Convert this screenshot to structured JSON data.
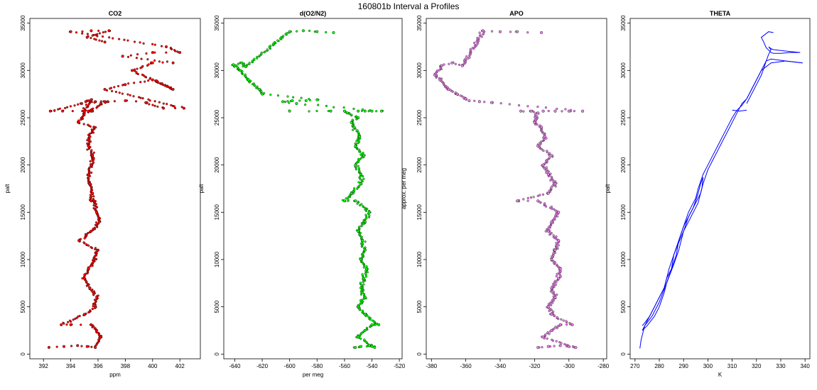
{
  "figure": {
    "title": "160801b   Interval a Profiles"
  },
  "colors": {
    "co2": "#ff0000",
    "o2n2": "#00ff00",
    "apo": "#ee82ee",
    "theta": "#0000ff",
    "point_outline": "#000000"
  },
  "chart_data": [
    {
      "type": "scatter",
      "title": "CO2",
      "xlabel": "ppm",
      "ylabel": "palt",
      "xlim": [
        391,
        403.5
      ],
      "ylim": [
        -500,
        35500
      ],
      "xticks": [
        392,
        394,
        396,
        398,
        400,
        402
      ],
      "yticks": [
        0,
        5000,
        10000,
        15000,
        20000,
        25000,
        30000,
        35000
      ],
      "color_key": "co2",
      "series": [
        {
          "style": "points",
          "x": [
            392.4,
            393.5,
            394.5,
            395.2,
            395.8,
            396.2,
            395.9,
            395.5,
            394.0,
            393.3,
            395.0,
            395.8,
            395.9,
            395.4,
            395.0,
            395.3,
            395.7,
            396.0,
            394.6,
            395.5,
            396.1,
            395.9,
            395.7,
            395.5,
            395.6,
            395.4,
            395.3,
            395.5,
            395.6,
            395.3,
            395.4,
            395.7,
            394.6,
            395.0,
            395.6,
            395.3,
            395.5,
            396.2,
            396.7,
            395.8,
            395.1,
            395.5,
            395.0,
            393.4,
            392.5,
            394.8,
            396.5,
            398.0,
            399.5,
            400.8,
            402.3,
            396.5,
            398.0,
            400.0,
            401.5,
            398.5,
            400.0,
            401.5,
            397.8,
            400.0,
            402.0,
            401.0,
            394.0,
            395.5,
            396.8,
            395.2,
            396.5
          ],
          "y": [
            700,
            800,
            900,
            800,
            700,
            1800,
            2500,
            3100,
            3100,
            3100,
            4200,
            5000,
            6000,
            7000,
            8000,
            9000,
            10000,
            11000,
            12000,
            13000,
            14000,
            15000,
            16200,
            16200,
            17000,
            18000,
            19000,
            20000,
            21000,
            22000,
            23000,
            24000,
            24500,
            25500,
            25700,
            25700,
            25700,
            26500,
            26700,
            26700,
            26700,
            26900,
            25700,
            25700,
            25700,
            26500,
            26700,
            26800,
            26600,
            26000,
            26000,
            28000,
            28500,
            29000,
            28000,
            30000,
            30800,
            30800,
            31500,
            31900,
            31900,
            32500,
            34100,
            34200,
            34200,
            33500,
            33000
          ]
        }
      ]
    },
    {
      "type": "scatter",
      "title": "d(O2/N2)",
      "xlabel": "per meg",
      "ylabel": "palt",
      "xlim": [
        -648,
        -518
      ],
      "ylim": [
        -500,
        35500
      ],
      "xticks": [
        -640,
        -620,
        -600,
        -580,
        -560,
        -540,
        -520
      ],
      "yticks": [
        0,
        5000,
        10000,
        15000,
        20000,
        25000,
        30000,
        35000
      ],
      "color_key": "o2n2",
      "series": [
        {
          "style": "points",
          "x": [
            -552,
            -548,
            -542,
            -540,
            -538,
            -550,
            -545,
            -540,
            -535,
            -545,
            -550,
            -545,
            -548,
            -546,
            -544,
            -548,
            -545,
            -547,
            -550,
            -545,
            -542,
            -552,
            -560,
            -555,
            -548,
            -548,
            -552,
            -546,
            -552,
            -549,
            -553,
            -555,
            -550,
            -558,
            -560,
            -600,
            -570,
            -550,
            -545,
            -540,
            -533,
            -595,
            -605,
            -598,
            -588,
            -580,
            -620,
            -622,
            -630,
            -636,
            -640,
            -641,
            -635,
            -632,
            -600,
            -590,
            -580,
            -568
          ],
          "y": [
            700,
            800,
            900,
            800,
            700,
            1800,
            2500,
            3100,
            3100,
            4200,
            5000,
            6000,
            7000,
            8000,
            9000,
            10000,
            11000,
            12000,
            13000,
            14000,
            15000,
            16200,
            16200,
            17000,
            18000,
            19000,
            20000,
            21000,
            22000,
            23000,
            24000,
            24500,
            25000,
            25500,
            25700,
            25700,
            25700,
            25700,
            25700,
            25700,
            25700,
            26500,
            26700,
            26800,
            26800,
            26900,
            27500,
            28000,
            29000,
            30000,
            30500,
            30600,
            30800,
            30400,
            34100,
            34200,
            34100,
            34000
          ]
        }
      ]
    },
    {
      "type": "scatter",
      "title": "APO",
      "xlabel": "",
      "ylabel": "approx. per meg",
      "xlim": [
        -383,
        -278
      ],
      "ylim": [
        -500,
        35500
      ],
      "xticks": [
        -380,
        -360,
        -340,
        -320,
        -300,
        -280
      ],
      "yticks": [
        0,
        5000,
        10000,
        15000,
        20000,
        25000,
        30000,
        35000
      ],
      "color_key": "apo",
      "series": [
        {
          "style": "points",
          "x": [
            -318,
            -312,
            -305,
            -300,
            -296,
            -315,
            -310,
            -305,
            -298,
            -310,
            -312,
            -308,
            -310,
            -306,
            -305,
            -310,
            -308,
            -306,
            -312,
            -310,
            -306,
            -318,
            -330,
            -312,
            -308,
            -312,
            -315,
            -310,
            -318,
            -314,
            -316,
            -320,
            -318,
            -322,
            -328,
            -315,
            -308,
            -300,
            -292,
            -345,
            -352,
            -358,
            -360,
            -365,
            -370,
            -375,
            -378,
            -374,
            -368,
            -362,
            -350,
            -340,
            -330,
            -316
          ],
          "y": [
            700,
            800,
            900,
            800,
            700,
            1800,
            2500,
            3100,
            3100,
            4200,
            5000,
            6000,
            7000,
            8000,
            9000,
            10000,
            11000,
            12000,
            13000,
            14000,
            15000,
            16200,
            16200,
            17000,
            18000,
            19000,
            20000,
            21000,
            22000,
            23000,
            24000,
            24500,
            25500,
            25700,
            25700,
            25700,
            25700,
            25700,
            25700,
            26600,
            26700,
            26800,
            27000,
            27500,
            28000,
            29000,
            29500,
            30500,
            30800,
            30500,
            34200,
            34100,
            34100,
            34000
          ]
        }
      ]
    },
    {
      "type": "line",
      "title": "THETA",
      "xlabel": "K",
      "ylabel": "palt",
      "xlim": [
        268,
        342
      ],
      "ylim": [
        -500,
        35500
      ],
      "xticks": [
        270,
        280,
        290,
        300,
        310,
        320,
        330,
        340
      ],
      "yticks": [
        0,
        5000,
        10000,
        15000,
        20000,
        25000,
        30000,
        35000
      ],
      "color_key": "theta",
      "series": [
        {
          "x": [
            272,
            272.5,
            274,
            277,
            280,
            283,
            284.5,
            286,
            288,
            290,
            292,
            295,
            297,
            298,
            300,
            302,
            304,
            306,
            308,
            310,
            312,
            314,
            316,
            318,
            320,
            322,
            324,
            326,
            332,
            339
          ],
          "y": [
            600,
            1500,
            3000,
            4000,
            5500,
            7500,
            8500,
            9500,
            11000,
            13000,
            14500,
            16000,
            17000,
            18000,
            19500,
            20500,
            21500,
            22500,
            23500,
            24500,
            25500,
            26500,
            27000,
            28000,
            29000,
            30000,
            31000,
            31200,
            31000,
            30800
          ]
        },
        {
          "x": [
            339,
            332,
            326,
            322,
            320,
            318,
            316,
            314,
            312,
            310,
            308,
            306,
            304,
            302,
            300,
            298,
            296,
            295,
            292,
            290,
            288,
            286,
            285,
            283,
            282,
            280,
            278,
            276,
            274,
            273
          ],
          "y": [
            30800,
            31000,
            30800,
            30000,
            29000,
            28000,
            27000,
            26300,
            25800,
            25000,
            24000,
            23000,
            22000,
            21000,
            20000,
            19000,
            17500,
            16500,
            15000,
            13500,
            12000,
            10500,
            9000,
            8000,
            7000,
            6000,
            5000,
            4000,
            3000,
            2500
          ]
        },
        {
          "x": [
            273,
            275,
            278,
            280,
            282,
            283,
            285,
            287,
            288,
            290,
            292,
            294,
            296,
            297,
            298
          ],
          "y": [
            2500,
            3000,
            4000,
            5000,
            6500,
            7500,
            9000,
            10500,
            12000,
            13500,
            14500,
            15500,
            17000,
            18000,
            18700
          ]
        },
        {
          "x": [
            298,
            297.5,
            297,
            296,
            294,
            292,
            290,
            288,
            286,
            284,
            283,
            282,
            280,
            278,
            276,
            274,
            273
          ],
          "y": [
            18700,
            17500,
            17000,
            16000,
            15000,
            14000,
            13000,
            11800,
            10500,
            9000,
            8000,
            7000,
            6000,
            5000,
            4000,
            3300,
            3000
          ]
        },
        {
          "x": [
            316,
            318,
            320,
            322,
            323,
            324,
            325,
            326,
            325,
            326,
            327,
            330,
            334,
            338,
            334,
            330,
            327,
            326,
            324,
            323,
            322,
            325,
            327
          ],
          "y": [
            26500,
            27500,
            28500,
            29500,
            30200,
            31000,
            31700,
            32200,
            32500,
            32300,
            32200,
            32100,
            32000,
            31900,
            31900,
            31800,
            31800,
            31900,
            32400,
            33000,
            33500,
            34100,
            34000
          ]
        },
        {
          "x": [
            310,
            313,
            316
          ],
          "y": [
            25800,
            25700,
            25800
          ]
        }
      ]
    }
  ]
}
